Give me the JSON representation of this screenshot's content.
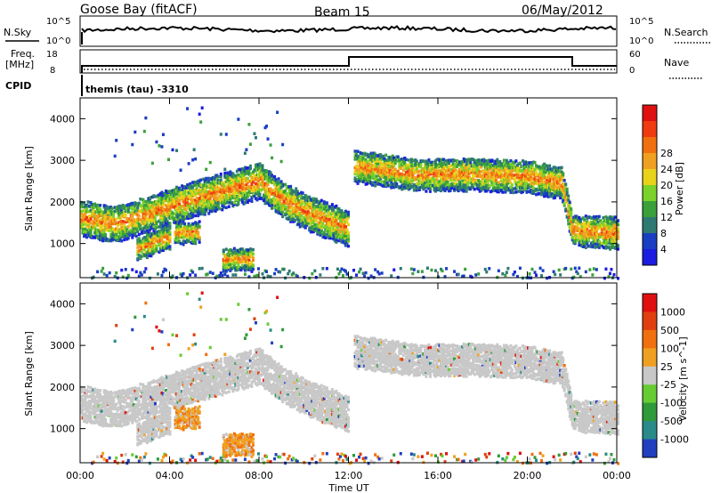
{
  "header": {
    "station": "Goose Bay (fitACF)",
    "beam": "Beam 15",
    "date": "06/May/2012"
  },
  "status_panels": {
    "nsky_label": "N.Sky",
    "nsearch_label": "N.Search",
    "freq_label_1": "Freq.",
    "freq_label_2": "[MHz]",
    "nave_label": "Nave",
    "cpid_label": "CPID",
    "noise_ticks_left": [
      "10^5",
      "10^0"
    ],
    "noise_ticks_right": [
      "10^5",
      "10^0"
    ],
    "freq_ticks": [
      "18",
      "8"
    ],
    "nave_ticks": [
      "60",
      "0"
    ],
    "cpid_text": "themis (tau) -3310"
  },
  "chart_data": [
    {
      "type": "heatmap",
      "title": "",
      "quantity": "Power",
      "colorbar_label": "Power [dB]",
      "colorbar_ticks": [
        "4",
        "8",
        "12",
        "16",
        "20",
        "24",
        "28"
      ],
      "colorbar_colors": [
        "#1c1ce0",
        "#1a3ec2",
        "#2e7a72",
        "#3aa03a",
        "#7ad22a",
        "#e8d21a",
        "#f0a020",
        "#f07010",
        "#f03a10",
        "#e01010"
      ],
      "ylabel": "Slant Range [km]",
      "ylim": [
        180,
        4500
      ],
      "yticks": [
        "1000",
        "2000",
        "3000",
        "4000"
      ],
      "xlim_hours": [
        0,
        24
      ],
      "features": [
        {
          "name": "main arc",
          "t": [
            0.0,
            1.5,
            3.0,
            5.0,
            7.0,
            8.0,
            9.0,
            10.5,
            11.5,
            12.0
          ],
          "range_km": [
            1650,
            1500,
            1750,
            2100,
            2400,
            2550,
            2100,
            1700,
            1500,
            1400
          ]
        },
        {
          "name": "echo 04-05h",
          "t": [
            4.2,
            5.3
          ],
          "range_km": [
            1300,
            1300
          ]
        },
        {
          "name": "echo 03-04h",
          "t": [
            2.5,
            4.0
          ],
          "range_km": [
            900,
            1200
          ]
        },
        {
          "name": "echo 06-08h",
          "t": [
            6.3,
            7.7
          ],
          "range_km": [
            650,
            650
          ]
        },
        {
          "name": "afternoon band",
          "t": [
            12.2,
            15.0,
            18.0,
            20.0,
            21.5,
            22.0,
            24.0
          ],
          "range_km": [
            2900,
            2700,
            2700,
            2650,
            2500,
            1350,
            1300
          ]
        }
      ]
    },
    {
      "type": "heatmap",
      "title": "",
      "quantity": "Velocity",
      "colorbar_label": "Velocity [m s^-1]",
      "colorbar_ticks": [
        "1000",
        "500",
        "100",
        "25",
        "-25",
        "-100",
        "-500",
        "-1000"
      ],
      "colorbar_colors": [
        "#2040c0",
        "#2a8a8a",
        "#2e9a3a",
        "#66cc33",
        "#c8c8c8",
        "#f0a020",
        "#f07010",
        "#e04010",
        "#e01010"
      ],
      "ylabel": "Slant Range [km]",
      "ylim": [
        180,
        4500
      ],
      "yticks": [
        "1000",
        "2000",
        "3000",
        "4000"
      ],
      "xlabel": "Time UT",
      "xticks": [
        "00:00",
        "04:00",
        "08:00",
        "12:00",
        "16:00",
        "20:00",
        "00:00"
      ],
      "xlim_hours": [
        0,
        24
      ]
    }
  ]
}
